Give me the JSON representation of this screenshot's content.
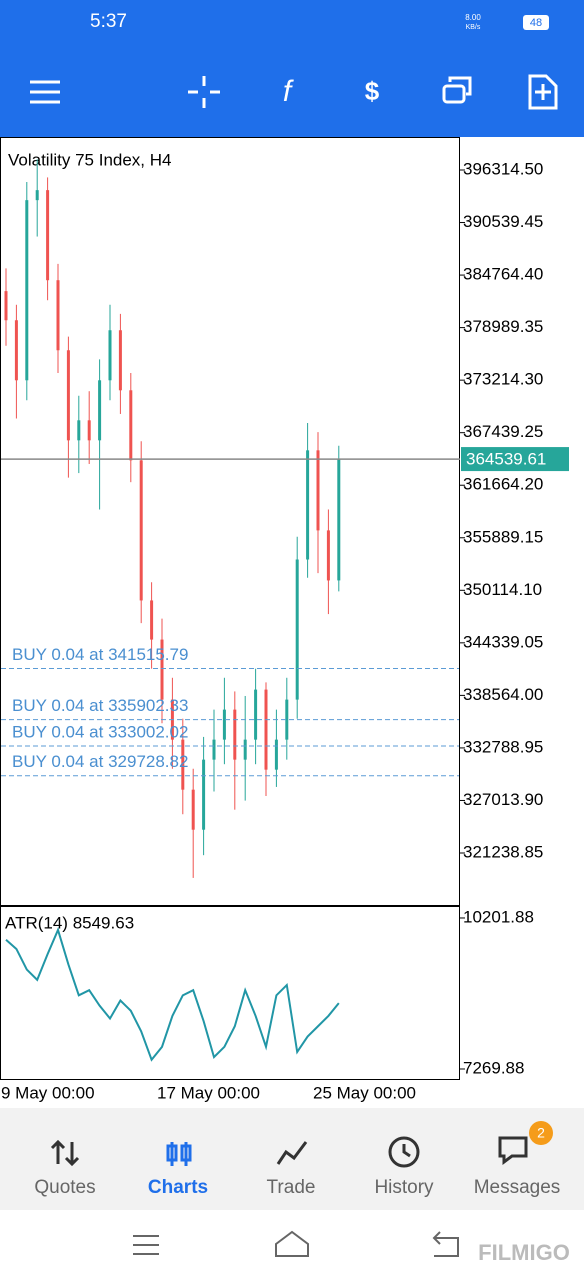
{
  "status_bar": {
    "time": "5:37",
    "network_speed": "8.00",
    "network_unit": "KB/s",
    "battery": "48"
  },
  "chart_data": [
    {
      "type": "candlestick",
      "title": "Volatility 75 Index, H4",
      "categories": [
        "9 May 00:00",
        null,
        null,
        null,
        null,
        null,
        null,
        null,
        null,
        null,
        null,
        null,
        null,
        null,
        null,
        "17 May 00:00",
        null,
        null,
        null,
        null,
        null,
        null,
        null,
        null,
        null,
        null,
        null,
        null,
        null,
        null,
        "25 May 00:00",
        null,
        null
      ],
      "open": [
        383000,
        379800,
        373200,
        393000,
        394100,
        384200,
        376500,
        366600,
        368800,
        366600,
        373200,
        378700,
        372100,
        364400,
        349000,
        344700,
        338100,
        333700,
        328200,
        323800,
        331500,
        333700,
        337000,
        331500,
        333700,
        339200,
        330400,
        333700,
        338100,
        353500,
        365500,
        356700,
        351200
      ],
      "high": [
        385500,
        381500,
        395000,
        397500,
        395500,
        386000,
        378000,
        371500,
        372000,
        375500,
        381500,
        380500,
        374000,
        366500,
        351000,
        347000,
        340500,
        336000,
        330500,
        334000,
        337000,
        340500,
        339000,
        338500,
        341500,
        340000,
        337000,
        340500,
        356000,
        368500,
        367500,
        359000,
        366000
      ],
      "low": [
        377000,
        369000,
        371000,
        389000,
        382000,
        374000,
        362500,
        363000,
        364000,
        359000,
        371000,
        369500,
        362000,
        346500,
        341500,
        335500,
        330500,
        325500,
        318500,
        321000,
        328000,
        331000,
        326000,
        327000,
        331000,
        327500,
        328500,
        331500,
        336000,
        351500,
        352000,
        347500,
        350000
      ],
      "close": [
        379800,
        373200,
        393000,
        394100,
        384200,
        376500,
        366600,
        368800,
        366600,
        373200,
        378700,
        372100,
        364400,
        349000,
        344700,
        338100,
        333700,
        328200,
        323800,
        331500,
        333700,
        337000,
        331500,
        333700,
        339200,
        330400,
        333700,
        338100,
        353500,
        365500,
        356700,
        351200,
        364539.61
      ],
      "up_color": "#26a69a",
      "down_color": "#ef5350",
      "ylim": [
        315523,
        399942
      ],
      "yticks": [
        {
          "value": 396314.5,
          "label": "396314.50"
        },
        {
          "value": 390539.45,
          "label": "390539.45"
        },
        {
          "value": 384764.4,
          "label": "384764.40"
        },
        {
          "value": 378989.35,
          "label": "378989.35"
        },
        {
          "value": 373214.3,
          "label": "373214.30"
        },
        {
          "value": 367439.25,
          "label": "367439.25"
        },
        {
          "value": 361664.2,
          "label": "361664.20"
        },
        {
          "value": 355889.15,
          "label": "355889.15"
        },
        {
          "value": 350114.1,
          "label": "350114.10"
        },
        {
          "value": 344339.05,
          "label": "344339.05"
        },
        {
          "value": 338564,
          "label": "338564.00"
        },
        {
          "value": 332788.95,
          "label": "332788.95"
        },
        {
          "value": 327013.9,
          "label": "327013.90"
        },
        {
          "value": 321238.85,
          "label": "321238.85"
        }
      ],
      "current_price": 364539.61,
      "orders": [
        {
          "label": "BUY 0.04 at 341515.79",
          "price": 341515.79
        },
        {
          "label": "BUY 0.04 at 335902.33",
          "price": 335902.33
        },
        {
          "label": "BUY 0.04 at 333002.02",
          "price": 333002.02
        },
        {
          "label": "BUY 0.04 at 329728.82",
          "price": 329728.82
        }
      ]
    },
    {
      "type": "line",
      "title": "ATR(14) 8549.63",
      "color": "#2196a6",
      "values": [
        9780,
        9600,
        9200,
        9000,
        9500,
        9970,
        9300,
        8700,
        8800,
        8500,
        8250,
        8600,
        8400,
        8000,
        7450,
        7700,
        8300,
        8700,
        8800,
        8200,
        7500,
        7700,
        8100,
        8800,
        8300,
        7700,
        8700,
        8900,
        7600,
        7900,
        8100,
        8300,
        8549.63
      ],
      "ylim": [
        7056,
        10415
      ],
      "yticks": [
        10201.88,
        7269.88
      ]
    }
  ],
  "nav": {
    "items": [
      "Quotes",
      "Charts",
      "Trade",
      "History",
      "Messages"
    ],
    "active_index": 1,
    "badge": "2"
  },
  "watermark": "FILMIGO"
}
